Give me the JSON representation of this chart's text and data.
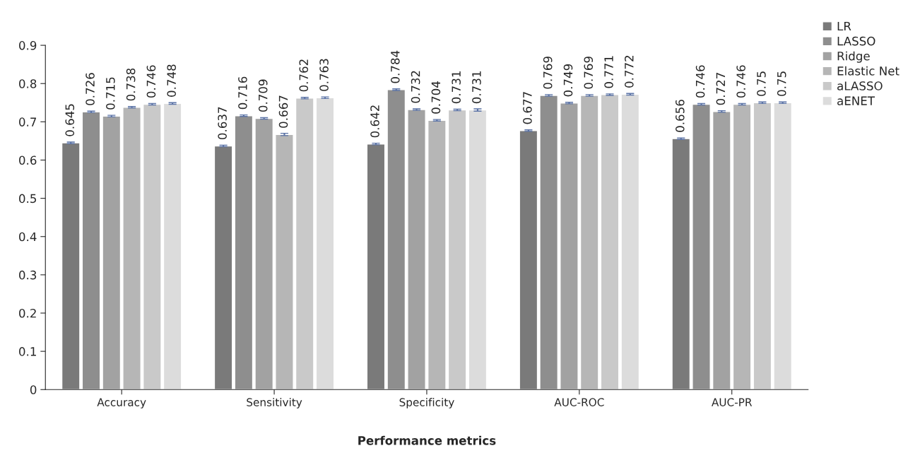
{
  "chart_data": {
    "type": "bar",
    "xlabel": "Performance metrics",
    "categories": [
      "Accuracy",
      "Sensitivity",
      "Specificity",
      "AUC-ROC",
      "AUC-PR"
    ],
    "series": [
      {
        "name": "LR",
        "color": "#7a7a7a",
        "values": [
          0.645,
          0.637,
          0.642,
          0.677,
          0.656
        ],
        "errors": [
          0.002,
          0.002,
          0.002,
          0.002,
          0.002
        ]
      },
      {
        "name": "LASSO",
        "color": "#8e8e8e",
        "values": [
          0.726,
          0.716,
          0.784,
          0.769,
          0.746
        ],
        "errors": [
          0.002,
          0.002,
          0.002,
          0.002,
          0.002
        ]
      },
      {
        "name": "Ridge",
        "color": "#a2a2a2",
        "values": [
          0.715,
          0.709,
          0.732,
          0.749,
          0.727
        ],
        "errors": [
          0.002,
          0.002,
          0.002,
          0.002,
          0.002
        ]
      },
      {
        "name": "Elastic Net",
        "color": "#b6b6b6",
        "values": [
          0.738,
          0.667,
          0.704,
          0.769,
          0.746
        ],
        "errors": [
          0.002,
          0.003,
          0.002,
          0.002,
          0.002
        ]
      },
      {
        "name": "aLASSO",
        "color": "#c9c9c9",
        "values": [
          0.746,
          0.762,
          0.731,
          0.771,
          0.75
        ],
        "errors": [
          0.002,
          0.002,
          0.002,
          0.002,
          0.002
        ]
      },
      {
        "name": "aENET",
        "color": "#dcdcdc",
        "values": [
          0.748,
          0.763,
          0.731,
          0.772,
          0.75
        ],
        "errors": [
          0.002,
          0.002,
          0.003,
          0.002,
          0.002
        ]
      }
    ],
    "ylim": [
      0,
      0.9
    ],
    "yticks": [
      0,
      0.1,
      0.2,
      0.3,
      0.4,
      0.5,
      0.6,
      0.7,
      0.8,
      0.9
    ],
    "data_labels": true,
    "legend": "top right",
    "grid": false
  }
}
